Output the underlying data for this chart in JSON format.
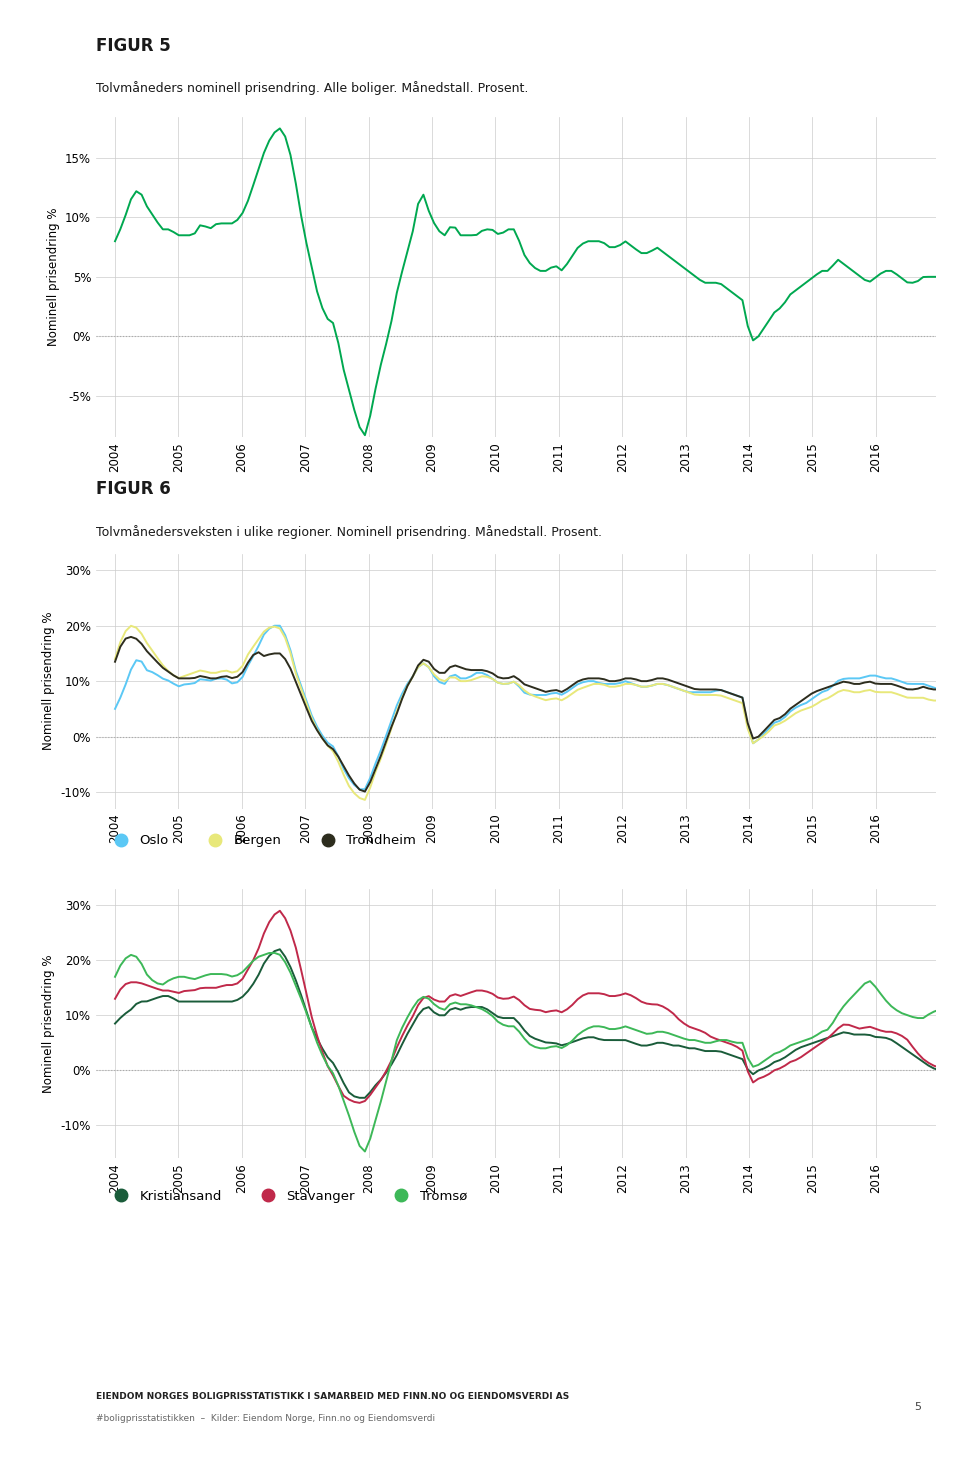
{
  "fig5_title": "FIGUR 5",
  "fig5_subtitle": "Tolvmåneders nominell prisendring. Alle boliger. Månedstall. Prosent.",
  "fig6_title": "FIGUR 6",
  "fig6_subtitle": "Tolvmånedersveksten i ulike regioner. Nominell prisendring. Månedstall. Prosent.",
  "footer_line1": "EIENDOM NORGES BOLIGPRISSTATISTIKK I SAMARBEID MED FINN.NO OG EIENDOMSVERDI AS",
  "footer_line2": "#boligprisstatistikken  –  Kilder: Eiendom Norge, Finn.no og Eiendomsverdi",
  "ylabel": "Nominell prisendring %",
  "fig5_color": "#00a850",
  "oslo_color": "#5bc8f5",
  "bergen_color": "#e8e87a",
  "trondheim_color": "#2d2d1e",
  "kristiansand_color": "#1a5c3a",
  "stavanger_color": "#c0294a",
  "tromso_color": "#3db858",
  "years": [
    2004,
    2005,
    2006,
    2007,
    2008,
    2009,
    2010,
    2011,
    2012,
    2013,
    2014,
    2015,
    2016
  ],
  "fig5_ylim": [
    -8.5,
    18.5
  ],
  "fig5_yticks": [
    -5,
    0,
    5,
    10,
    15
  ],
  "fig6_ylim": [
    -13,
    33
  ],
  "fig6_yticks": [
    -10,
    0,
    10,
    20,
    30
  ],
  "fig7_ylim": [
    -16,
    33
  ],
  "fig7_yticks": [
    -10,
    0,
    10,
    20,
    30
  ],
  "fig5_data": [
    8.0,
    9.5,
    11.5,
    12.5,
    11.0,
    10.0,
    9.0,
    9.0,
    8.5,
    8.5,
    8.5,
    9.5,
    9.0,
    9.5,
    9.5,
    9.5,
    10.0,
    11.5,
    13.5,
    15.5,
    17.0,
    17.5,
    16.5,
    13.0,
    9.0,
    6.0,
    3.0,
    1.5,
    1.0,
    -2.5,
    -5.0,
    -7.5,
    -8.5,
    -5.0,
    -2.0,
    0.5,
    4.0,
    6.5,
    9.0,
    12.5,
    10.5,
    9.0,
    8.5,
    9.5,
    8.5,
    8.5,
    8.5,
    9.0,
    9.0,
    8.5,
    9.0,
    9.0,
    7.0,
    6.0,
    5.5,
    5.5,
    6.0,
    5.5,
    6.5,
    7.5,
    8.0,
    8.0,
    8.0,
    7.5,
    7.5,
    8.0,
    7.5,
    7.0,
    7.0,
    7.5,
    7.0,
    6.5,
    6.0,
    5.5,
    5.0,
    4.5,
    4.5,
    4.5,
    4.0,
    3.5,
    3.0,
    -0.5,
    0.0,
    1.0,
    2.0,
    2.5,
    3.5,
    4.0,
    4.5,
    5.0,
    5.5,
    5.5,
    6.5,
    6.0,
    5.5,
    5.0,
    4.5,
    5.0,
    5.5,
    5.5,
    5.0,
    4.5,
    4.5,
    5.0,
    5.0,
    5.0
  ],
  "oslo_data": [
    5.0,
    8.0,
    12.0,
    14.5,
    12.0,
    11.5,
    10.5,
    10.0,
    9.0,
    9.5,
    9.5,
    10.5,
    10.0,
    10.5,
    10.5,
    9.5,
    10.0,
    13.0,
    15.5,
    18.5,
    20.0,
    20.0,
    17.5,
    12.0,
    8.0,
    4.0,
    1.0,
    -1.0,
    -2.0,
    -5.5,
    -8.0,
    -9.5,
    -9.5,
    -5.5,
    -2.0,
    2.0,
    6.0,
    9.0,
    11.0,
    13.5,
    12.5,
    10.0,
    9.5,
    11.5,
    10.5,
    10.5,
    11.5,
    11.5,
    10.5,
    9.5,
    9.5,
    10.0,
    8.0,
    7.5,
    7.5,
    7.5,
    8.0,
    7.5,
    8.5,
    9.5,
    10.0,
    10.0,
    9.5,
    9.5,
    9.5,
    10.0,
    9.5,
    9.0,
    9.0,
    9.5,
    9.5,
    9.0,
    8.5,
    8.0,
    8.0,
    8.0,
    8.0,
    8.5,
    8.0,
    7.5,
    7.0,
    -1.5,
    -0.5,
    1.0,
    2.5,
    3.0,
    4.5,
    5.5,
    6.0,
    7.0,
    8.0,
    8.5,
    10.0,
    10.5,
    10.5,
    10.5,
    11.0,
    11.0,
    10.5,
    10.5,
    10.0,
    9.5,
    9.5,
    9.5,
    9.0,
    8.5
  ],
  "bergen_data": [
    14.0,
    18.5,
    20.0,
    19.5,
    17.0,
    15.0,
    13.0,
    11.5,
    10.5,
    11.0,
    11.5,
    12.0,
    11.5,
    11.5,
    12.0,
    11.5,
    12.0,
    15.0,
    17.0,
    19.0,
    20.0,
    19.5,
    17.0,
    11.5,
    7.5,
    3.5,
    0.5,
    -1.5,
    -3.0,
    -6.5,
    -9.5,
    -11.0,
    -11.5,
    -7.0,
    -3.5,
    0.5,
    5.0,
    8.5,
    11.0,
    13.5,
    12.5,
    10.5,
    10.0,
    11.0,
    10.0,
    10.0,
    10.5,
    11.0,
    10.5,
    9.5,
    9.5,
    10.0,
    8.5,
    7.5,
    7.0,
    6.5,
    7.0,
    6.5,
    7.5,
    8.5,
    9.0,
    9.5,
    9.5,
    9.0,
    9.0,
    9.5,
    9.5,
    9.0,
    9.0,
    9.5,
    9.5,
    9.0,
    8.5,
    8.0,
    7.5,
    7.5,
    7.5,
    7.5,
    7.0,
    6.5,
    6.0,
    -1.5,
    -0.5,
    0.5,
    2.0,
    2.5,
    3.5,
    4.5,
    5.0,
    5.5,
    6.5,
    7.0,
    8.0,
    8.5,
    8.0,
    8.0,
    8.5,
    8.0,
    8.0,
    8.0,
    7.5,
    7.0,
    7.0,
    7.0,
    6.5,
    6.5
  ],
  "trondheim_data": [
    13.5,
    17.5,
    18.0,
    17.5,
    15.5,
    14.0,
    12.5,
    11.5,
    10.5,
    10.5,
    10.5,
    11.0,
    10.5,
    10.5,
    11.0,
    10.5,
    11.0,
    13.5,
    15.5,
    14.5,
    15.0,
    15.0,
    13.5,
    10.0,
    6.5,
    3.0,
    0.5,
    -1.5,
    -2.5,
    -5.0,
    -7.5,
    -9.5,
    -10.0,
    -6.5,
    -3.0,
    1.0,
    4.5,
    8.5,
    11.0,
    14.0,
    13.5,
    11.5,
    11.5,
    13.0,
    12.5,
    12.0,
    12.0,
    12.0,
    11.5,
    10.5,
    10.5,
    11.0,
    9.5,
    9.0,
    8.5,
    8.0,
    8.5,
    8.0,
    9.0,
    10.0,
    10.5,
    10.5,
    10.5,
    10.0,
    10.0,
    10.5,
    10.5,
    10.0,
    10.0,
    10.5,
    10.5,
    10.0,
    9.5,
    9.0,
    8.5,
    8.5,
    8.5,
    8.5,
    8.0,
    7.5,
    7.0,
    -0.5,
    0.0,
    1.5,
    3.0,
    3.5,
    5.0,
    6.0,
    7.0,
    8.0,
    8.5,
    9.0,
    9.5,
    10.0,
    9.5,
    9.5,
    10.0,
    9.5,
    9.5,
    9.5,
    9.0,
    8.5,
    8.5,
    9.0,
    8.5,
    8.5
  ],
  "kristiansand_data": [
    8.5,
    10.0,
    11.0,
    12.5,
    12.5,
    13.0,
    13.5,
    13.5,
    12.5,
    12.5,
    12.5,
    12.5,
    12.5,
    12.5,
    12.5,
    12.5,
    13.0,
    14.5,
    16.5,
    19.5,
    21.5,
    22.0,
    20.0,
    16.5,
    12.5,
    8.0,
    5.0,
    2.5,
    1.0,
    -2.0,
    -4.5,
    -5.0,
    -5.0,
    -3.0,
    -1.5,
    0.5,
    3.0,
    6.0,
    8.5,
    11.0,
    11.5,
    10.0,
    10.0,
    11.5,
    11.0,
    11.5,
    11.5,
    11.5,
    10.5,
    9.5,
    9.5,
    9.5,
    7.5,
    6.0,
    5.5,
    5.0,
    5.0,
    4.5,
    5.0,
    5.5,
    6.0,
    6.0,
    5.5,
    5.5,
    5.5,
    5.5,
    5.0,
    4.5,
    4.5,
    5.0,
    5.0,
    4.5,
    4.5,
    4.0,
    4.0,
    3.5,
    3.5,
    3.5,
    3.0,
    2.5,
    2.0,
    -1.0,
    0.0,
    0.5,
    1.5,
    2.0,
    3.0,
    4.0,
    4.5,
    5.0,
    5.5,
    6.0,
    6.5,
    7.0,
    6.5,
    6.5,
    6.5,
    6.0,
    6.0,
    5.5,
    4.5,
    3.5,
    2.5,
    1.5,
    0.5,
    0.0
  ],
  "stavanger_data": [
    13.0,
    15.5,
    16.0,
    16.0,
    15.5,
    15.0,
    14.5,
    14.5,
    14.0,
    14.5,
    14.5,
    15.0,
    15.0,
    15.0,
    15.5,
    15.5,
    16.0,
    18.5,
    21.0,
    25.0,
    28.0,
    29.0,
    27.0,
    22.5,
    16.5,
    10.0,
    5.0,
    1.0,
    -1.5,
    -4.5,
    -5.5,
    -6.0,
    -5.5,
    -3.5,
    -1.5,
    1.0,
    4.5,
    7.5,
    10.0,
    13.0,
    13.5,
    12.5,
    12.5,
    14.0,
    13.5,
    14.0,
    14.5,
    14.5,
    14.0,
    13.0,
    13.0,
    13.5,
    12.0,
    11.0,
    11.0,
    10.5,
    11.0,
    10.5,
    11.5,
    13.0,
    14.0,
    14.0,
    14.0,
    13.5,
    13.5,
    14.0,
    13.5,
    12.5,
    12.0,
    12.0,
    11.5,
    10.5,
    9.0,
    8.0,
    7.5,
    7.0,
    6.0,
    5.5,
    5.0,
    4.5,
    3.5,
    -2.5,
    -1.5,
    -1.0,
    0.0,
    0.5,
    1.5,
    2.0,
    3.0,
    4.0,
    5.0,
    6.0,
    7.5,
    8.5,
    8.0,
    7.5,
    8.0,
    7.5,
    7.0,
    7.0,
    6.5,
    5.5,
    3.5,
    2.0,
    1.0,
    0.5
  ],
  "tromso_data": [
    17.0,
    20.0,
    21.0,
    20.5,
    17.5,
    16.0,
    15.5,
    16.5,
    17.0,
    17.0,
    16.5,
    17.0,
    17.5,
    17.5,
    17.5,
    17.0,
    17.5,
    19.0,
    20.5,
    21.0,
    21.5,
    21.0,
    19.0,
    15.5,
    12.0,
    8.0,
    4.0,
    1.0,
    -1.0,
    -5.0,
    -9.0,
    -13.5,
    -15.0,
    -10.0,
    -5.0,
    0.5,
    6.0,
    9.0,
    11.5,
    13.5,
    13.0,
    11.5,
    11.0,
    12.5,
    12.0,
    12.0,
    11.5,
    11.0,
    10.0,
    8.5,
    8.0,
    8.0,
    6.0,
    4.5,
    4.0,
    4.0,
    4.5,
    4.0,
    5.0,
    6.5,
    7.5,
    8.0,
    8.0,
    7.5,
    7.5,
    8.0,
    7.5,
    7.0,
    6.5,
    7.0,
    7.0,
    6.5,
    6.0,
    5.5,
    5.5,
    5.0,
    5.0,
    5.5,
    5.5,
    5.0,
    5.0,
    0.5,
    1.0,
    2.0,
    3.0,
    3.5,
    4.5,
    5.0,
    5.5,
    6.0,
    7.0,
    7.5,
    10.0,
    12.0,
    13.5,
    15.0,
    16.5,
    15.0,
    13.0,
    11.5,
    10.5,
    10.0,
    9.5,
    9.5,
    10.5,
    11.0
  ]
}
